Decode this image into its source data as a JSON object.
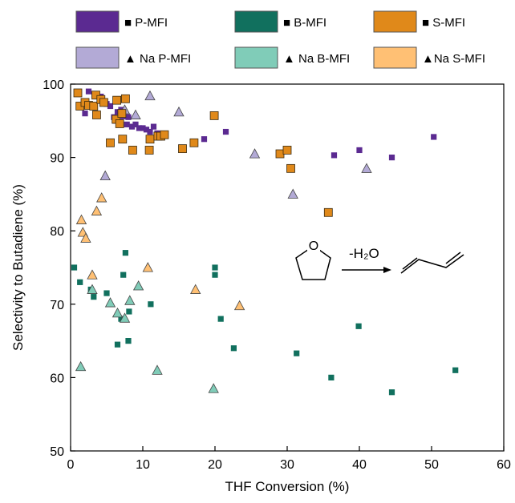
{
  "chart_data": {
    "type": "scatter",
    "xlabel": "THF Conversion (%)",
    "ylabel": "Selectivity to Butadiene (%)",
    "xlim": [
      0,
      60
    ],
    "ylim": [
      50,
      100
    ],
    "xticks": [
      0,
      10,
      20,
      30,
      40,
      50,
      60
    ],
    "yticks": [
      50,
      60,
      70,
      80,
      90,
      100
    ],
    "grid": false,
    "legend_position": "top",
    "series": [
      {
        "name": "■ P-MFI",
        "marker": "square",
        "color": "#5b2a91",
        "points": [
          [
            2.5,
            99
          ],
          [
            3.3,
            98.5
          ],
          [
            4.2,
            98.3
          ],
          [
            5.0,
            97.3
          ],
          [
            5.5,
            97
          ],
          [
            6.0,
            95.5
          ],
          [
            6.2,
            95.0
          ],
          [
            6.5,
            96.2
          ],
          [
            7.0,
            96.5
          ],
          [
            7.3,
            95.6
          ],
          [
            7.8,
            94.5
          ],
          [
            8.0,
            95.5
          ],
          [
            8.5,
            94.2
          ],
          [
            9.0,
            94.5
          ],
          [
            9.5,
            94.0
          ],
          [
            10.0,
            94.0
          ],
          [
            10.5,
            93.8
          ],
          [
            11.0,
            93.5
          ],
          [
            11.5,
            94.2
          ],
          [
            12.0,
            93.3
          ],
          [
            18.5,
            92.5
          ],
          [
            21.5,
            93.5
          ],
          [
            36.5,
            90.3
          ],
          [
            40.0,
            91
          ],
          [
            44.5,
            90
          ],
          [
            50.3,
            92.8
          ],
          [
            2.0,
            96.0
          ]
        ]
      },
      {
        "name": "▲ Na P-MFI",
        "marker": "triangle",
        "color": "#b3aad6",
        "points": [
          [
            4.8,
            87.5
          ],
          [
            7.5,
            96.5
          ],
          [
            9.0,
            95.8
          ],
          [
            11.0,
            98.4
          ],
          [
            15.0,
            96.2
          ],
          [
            25.5,
            90.5
          ],
          [
            30.8,
            85.0
          ],
          [
            41.0,
            88.5
          ]
        ]
      },
      {
        "name": "■ B-MFI",
        "marker": "square",
        "color": "#11705e",
        "points": [
          [
            0.5,
            75
          ],
          [
            1.3,
            73
          ],
          [
            2.8,
            72
          ],
          [
            3.2,
            71
          ],
          [
            5.0,
            71.5
          ],
          [
            6.5,
            64.5
          ],
          [
            7.0,
            68
          ],
          [
            7.3,
            74
          ],
          [
            7.6,
            77
          ],
          [
            8.0,
            65
          ],
          [
            8.1,
            69
          ],
          [
            11.1,
            70
          ],
          [
            20.0,
            75
          ],
          [
            20.0,
            74
          ],
          [
            20.8,
            68
          ],
          [
            22.6,
            64
          ],
          [
            31.3,
            63.3
          ],
          [
            36.1,
            60
          ],
          [
            39.9,
            67
          ],
          [
            44.5,
            58
          ],
          [
            53.3,
            61
          ]
        ]
      },
      {
        "name": "▲ Na B-MFI",
        "marker": "triangle",
        "color": "#80ccb8",
        "points": [
          [
            1.4,
            61.5
          ],
          [
            3.0,
            72
          ],
          [
            5.5,
            70.2
          ],
          [
            6.5,
            68.8
          ],
          [
            7.5,
            68.1
          ],
          [
            8.2,
            70.5
          ],
          [
            9.4,
            72.5
          ],
          [
            12.0,
            61
          ],
          [
            19.8,
            58.5
          ]
        ]
      },
      {
        "name": "■ S-MFI",
        "marker": "square",
        "color": "#e0891a",
        "points": [
          [
            1.0,
            98.8
          ],
          [
            1.3,
            97.0
          ],
          [
            2.0,
            97.5
          ],
          [
            2.5,
            97.1
          ],
          [
            3.2,
            97.0
          ],
          [
            3.5,
            98.5
          ],
          [
            3.6,
            95.8
          ],
          [
            4.2,
            97.9
          ],
          [
            4.6,
            97.5
          ],
          [
            5.5,
            92.0
          ],
          [
            6.3,
            95.2
          ],
          [
            6.4,
            97.8
          ],
          [
            6.8,
            94.6
          ],
          [
            7.1,
            96.0
          ],
          [
            7.2,
            92.5
          ],
          [
            7.6,
            98.0
          ],
          [
            8.6,
            91.0
          ],
          [
            10.9,
            91.0
          ],
          [
            11.0,
            92.5
          ],
          [
            12.1,
            92.9
          ],
          [
            12.5,
            92.9
          ],
          [
            13.0,
            93.1
          ],
          [
            15.5,
            91.2
          ],
          [
            17.1,
            92.0
          ],
          [
            19.9,
            95.7
          ],
          [
            29.0,
            90.5
          ],
          [
            30.0,
            91.0
          ],
          [
            30.5,
            88.5
          ],
          [
            35.7,
            82.5
          ]
        ]
      },
      {
        "name": "▲Na S-MFI",
        "marker": "triangle",
        "color": "#ffc074",
        "points": [
          [
            1.5,
            81.5
          ],
          [
            1.7,
            79.8
          ],
          [
            2.1,
            79.0
          ],
          [
            3.0,
            74.0
          ],
          [
            3.6,
            82.7
          ],
          [
            4.3,
            84.5
          ],
          [
            10.7,
            75.0
          ],
          [
            17.3,
            72.0
          ],
          [
            23.4,
            69.8
          ]
        ]
      }
    ]
  },
  "annotation": {
    "reaction_label": "-H₂O",
    "ring_atom": "O"
  }
}
